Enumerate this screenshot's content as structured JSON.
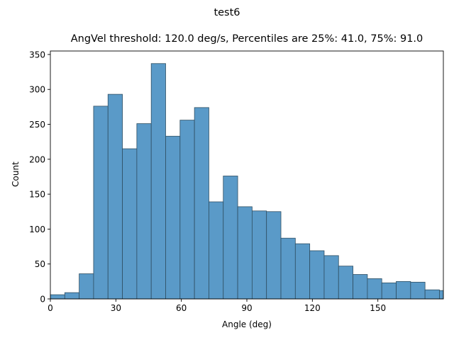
{
  "figure": {
    "suptitle": "test6"
  },
  "chart_data": {
    "type": "bar",
    "title": "AngVel threshold: 120.0 deg/s, Percentiles are 25%: 41.0, 75%: 91.0",
    "xlabel": "Angle (deg)",
    "ylabel": "Count",
    "xlim": [
      0,
      180
    ],
    "ylim": [
      0,
      355
    ],
    "bin_width": 6.6,
    "bin_edges_start": 0,
    "values": [
      6,
      9,
      36,
      276,
      293,
      215,
      251,
      337,
      233,
      256,
      274,
      139,
      176,
      132,
      126,
      125,
      87,
      79,
      69,
      62,
      47,
      35,
      29,
      23,
      25,
      24,
      13,
      12
    ],
    "xticks": [
      0,
      30,
      60,
      90,
      120,
      150
    ],
    "yticks": [
      0,
      50,
      100,
      150,
      200,
      250,
      300,
      350
    ],
    "bar_color": "#5a9ac8",
    "edge_color": "#2f4f63",
    "grid": false,
    "legend": "none"
  }
}
